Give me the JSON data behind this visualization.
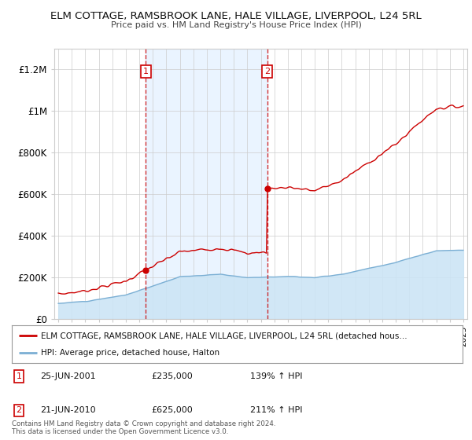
{
  "title": "ELM COTTAGE, RAMSBROOK LANE, HALE VILLAGE, LIVERPOOL, L24 5RL",
  "subtitle": "Price paid vs. HM Land Registry's House Price Index (HPI)",
  "background_color": "#ffffff",
  "plot_bg_color": "#ffffff",
  "hpi_fill_color": "#cce5f5",
  "sale_shade_color": "#ddeeff",
  "ylabel_ticks": [
    "£0",
    "£200K",
    "£400K",
    "£600K",
    "£800K",
    "£1M",
    "£1.2M"
  ],
  "ytick_values": [
    0,
    200000,
    400000,
    600000,
    800000,
    1000000,
    1200000
  ],
  "ylim": [
    0,
    1300000
  ],
  "xlim_start": 1994.7,
  "xlim_end": 2025.3,
  "sales": [
    {
      "year": 2001.48,
      "price": 235000,
      "label": "1"
    },
    {
      "year": 2010.47,
      "price": 625000,
      "label": "2"
    }
  ],
  "legend_property_label": "ELM COTTAGE, RAMSBROOK LANE, HALE VILLAGE, LIVERPOOL, L24 5RL (detached hous…",
  "legend_hpi_label": "HPI: Average price, detached house, Halton",
  "legend_entries": [
    {
      "label": "1",
      "date": "25-JUN-2001",
      "price": "£235,000",
      "hpi": "139% ↑ HPI"
    },
    {
      "label": "2",
      "date": "21-JUN-2010",
      "price": "£625,000",
      "hpi": "211% ↑ HPI"
    }
  ],
  "copyright_text": "Contains HM Land Registry data © Crown copyright and database right 2024.\nThis data is licensed under the Open Government Licence v3.0.",
  "property_line_color": "#cc0000",
  "hpi_line_color": "#7bafd4",
  "grid_color": "#cccccc",
  "sale_marker_color": "#cc0000",
  "sale_box_color": "#cc0000",
  "dashed_line_color": "#cc0000"
}
